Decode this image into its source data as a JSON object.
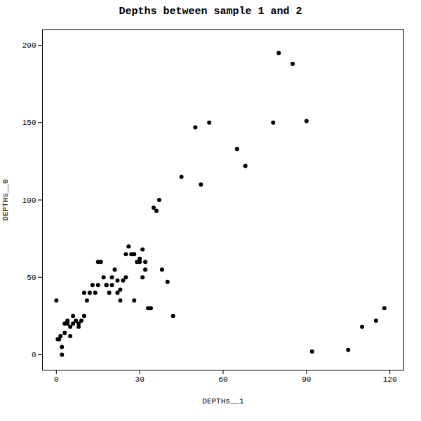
{
  "chart_data": {
    "type": "scatter",
    "title": "Depths between sample 1 and 2",
    "xlabel": "DEPTHs__1",
    "ylabel": "DEPTHs__0",
    "xlim": [
      -5,
      125
    ],
    "ylim": [
      -10,
      210
    ],
    "xticks": [
      0,
      30,
      60,
      90,
      120
    ],
    "yticks": [
      0,
      50,
      100,
      150,
      200
    ],
    "x": [
      0,
      0.5,
      1,
      1.5,
      2,
      2,
      3,
      3,
      4,
      4,
      5,
      5,
      6,
      6,
      7,
      8,
      8,
      9,
      10,
      10,
      11,
      12,
      13,
      14,
      15,
      15,
      16,
      17,
      18,
      18,
      19,
      20,
      20,
      21,
      22,
      22,
      23,
      23,
      24,
      25,
      25,
      26,
      27,
      28,
      28,
      29,
      30,
      30,
      31,
      31,
      32,
      32,
      33,
      34,
      35,
      36,
      37,
      38,
      40,
      42,
      45,
      50,
      52,
      55,
      65,
      68,
      78,
      80,
      85,
      90,
      92,
      105,
      110,
      115,
      118
    ],
    "y": [
      35,
      10,
      10,
      12,
      0,
      5,
      20,
      14,
      20,
      22,
      18,
      12,
      25,
      20,
      22,
      20,
      18,
      22,
      25,
      40,
      35,
      40,
      45,
      40,
      45,
      60,
      60,
      50,
      45,
      45,
      40,
      50,
      45,
      55,
      48,
      40,
      42,
      35,
      48,
      50,
      65,
      70,
      65,
      35,
      65,
      60,
      62,
      60,
      68,
      50,
      55,
      60,
      30,
      30,
      95,
      93,
      100,
      55,
      47,
      25,
      115,
      147,
      110,
      150,
      133,
      122,
      150,
      195,
      188,
      151,
      2,
      3,
      18,
      22,
      30
    ],
    "color": "#000000"
  }
}
